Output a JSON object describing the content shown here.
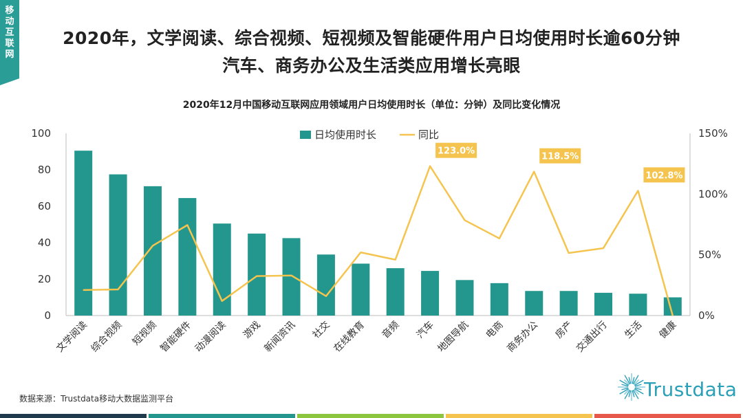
{
  "side_tag": "移动互联网",
  "title_line1": "2020年，文学阅读、综合视频、短视频及智能硬件用户日均使用时长逾60分钟",
  "title_line2": "汽车、商务办公及生活类应用增长亮眼",
  "source": "数据来源：Trustdata移动大数据监测平台",
  "logo_text": "Trustdata",
  "colors": {
    "bar": "#23968e",
    "line": "#f5c44e",
    "label_bg": "#f5c44e",
    "footer": [
      "#1f3a4d",
      "#23968e",
      "#8cc63f",
      "#f5c44e",
      "#e8584a"
    ]
  },
  "chart_data": {
    "type": "bar+line",
    "title": "2020年12月中国移动互联网应用领域用户日均使用时长（单位：分钟）及同比变化情况",
    "categories": [
      "文学阅读",
      "综合视频",
      "短视频",
      "智能硬件",
      "动漫阅读",
      "游戏",
      "新闻资讯",
      "社交",
      "在线教育",
      "音频",
      "汽车",
      "地图导航",
      "电商",
      "商务办公",
      "房产",
      "交通出行",
      "生活",
      "健康"
    ],
    "series": [
      {
        "name": "日均使用时长",
        "type": "bar",
        "axis": "left",
        "values": [
          90.5,
          77.5,
          71,
          64.5,
          50.5,
          45,
          42.5,
          33.5,
          28.5,
          26,
          24.5,
          19.5,
          17.8,
          13.5,
          13.5,
          12.5,
          12,
          10
        ]
      },
      {
        "name": "同比",
        "type": "line",
        "axis": "right",
        "values": [
          21,
          21.5,
          57.5,
          74.5,
          12,
          32.5,
          33,
          16,
          52,
          46,
          123.0,
          78.5,
          63.5,
          118.5,
          51.5,
          55.5,
          102.8,
          0
        ]
      }
    ],
    "labels": [
      {
        "index": 10,
        "text": "123.0%"
      },
      {
        "index": 13,
        "text": "118.5%"
      },
      {
        "index": 16,
        "text": "102.8%"
      }
    ],
    "y_left": {
      "min": 0,
      "max": 100,
      "ticks": [
        "0",
        "20",
        "40",
        "60",
        "80",
        "100"
      ]
    },
    "y_right": {
      "min": 0,
      "max": 150,
      "ticks": [
        "0%",
        "50%",
        "100%",
        "150%"
      ]
    },
    "legend": {
      "placement": "top-center",
      "items": [
        "日均使用时长",
        "同比"
      ]
    },
    "grid": false
  }
}
